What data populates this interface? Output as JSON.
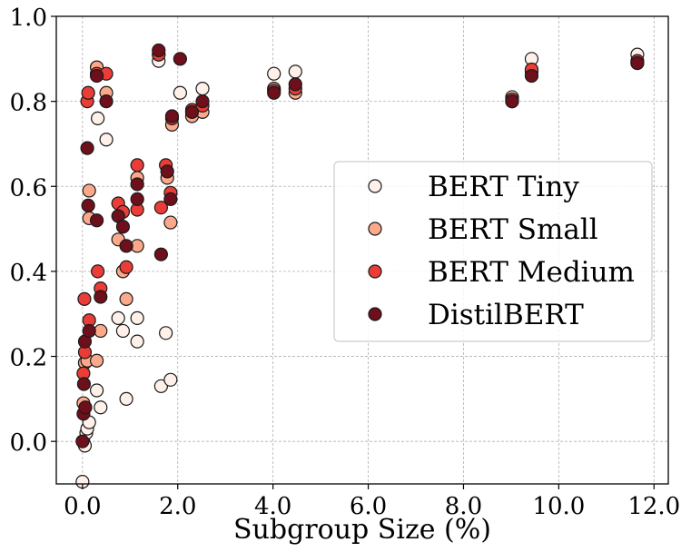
{
  "chart_data": {
    "type": "scatter",
    "title": "",
    "xlabel": "Subgroup Size (%)",
    "ylabel": "",
    "xlim": [
      -0.55,
      12.3
    ],
    "ylim": [
      -0.1,
      1.0
    ],
    "xticks": [
      0.0,
      2.0,
      4.0,
      6.0,
      8.0,
      10.0,
      12.0
    ],
    "xtick_labels": [
      "0.0",
      "2.0",
      "4.0",
      "6.0",
      "8.0",
      "10.0",
      "12.0"
    ],
    "yticks": [
      0.0,
      0.2,
      0.4,
      0.6,
      0.8,
      1.0
    ],
    "ytick_labels": [
      "0.0",
      "0.2",
      "0.4",
      "0.6",
      "0.8",
      "1.0"
    ],
    "grid": true,
    "legend_position": "center-right",
    "series": [
      {
        "name": "BERT Tiny",
        "color": "#fff0e9",
        "points": [
          [
            0.0,
            -0.095
          ],
          [
            0.02,
            0.0
          ],
          [
            0.05,
            -0.01
          ],
          [
            0.08,
            0.02
          ],
          [
            0.1,
            0.03
          ],
          [
            0.14,
            0.045
          ],
          [
            0.05,
            0.185
          ],
          [
            0.3,
            0.88
          ],
          [
            0.32,
            0.76
          ],
          [
            0.3,
            0.12
          ],
          [
            0.38,
            0.08
          ],
          [
            0.5,
            0.71
          ],
          [
            0.75,
            0.29
          ],
          [
            0.85,
            0.26
          ],
          [
            0.92,
            0.1
          ],
          [
            1.15,
            0.29
          ],
          [
            1.15,
            0.235
          ],
          [
            1.6,
            0.895
          ],
          [
            1.65,
            0.13
          ],
          [
            1.75,
            0.255
          ],
          [
            1.85,
            0.145
          ],
          [
            2.05,
            0.82
          ],
          [
            2.3,
            0.775
          ],
          [
            2.52,
            0.83
          ],
          [
            4.02,
            0.865
          ],
          [
            4.47,
            0.87
          ],
          [
            9.02,
            0.81
          ],
          [
            9.43,
            0.9
          ],
          [
            11.65,
            0.91
          ]
        ]
      },
      {
        "name": "BERT Small",
        "color": "#fca98b",
        "points": [
          [
            0.02,
            0.09
          ],
          [
            0.05,
            0.185
          ],
          [
            0.1,
            0.19
          ],
          [
            0.14,
            0.59
          ],
          [
            0.14,
            0.525
          ],
          [
            0.3,
            0.19
          ],
          [
            0.3,
            0.88
          ],
          [
            0.38,
            0.26
          ],
          [
            0.5,
            0.82
          ],
          [
            0.75,
            0.475
          ],
          [
            0.85,
            0.4
          ],
          [
            0.92,
            0.335
          ],
          [
            1.15,
            0.46
          ],
          [
            1.15,
            0.62
          ],
          [
            1.6,
            0.91
          ],
          [
            1.78,
            0.62
          ],
          [
            1.85,
            0.515
          ],
          [
            1.88,
            0.745
          ],
          [
            2.3,
            0.765
          ],
          [
            2.52,
            0.775
          ],
          [
            4.02,
            0.83
          ],
          [
            4.47,
            0.82
          ],
          [
            9.02,
            0.8
          ],
          [
            9.43,
            0.87
          ],
          [
            11.65,
            0.89
          ]
        ]
      },
      {
        "name": "BERT Medium",
        "color": "#ea3d37",
        "points": [
          [
            0.02,
            0.16
          ],
          [
            0.04,
            0.335
          ],
          [
            0.05,
            0.21
          ],
          [
            0.1,
            0.8
          ],
          [
            0.12,
            0.82
          ],
          [
            0.14,
            0.285
          ],
          [
            0.3,
            0.865
          ],
          [
            0.32,
            0.4
          ],
          [
            0.38,
            0.36
          ],
          [
            0.5,
            0.865
          ],
          [
            0.75,
            0.56
          ],
          [
            0.85,
            0.54
          ],
          [
            0.92,
            0.41
          ],
          [
            1.15,
            0.65
          ],
          [
            1.15,
            0.545
          ],
          [
            1.6,
            0.91
          ],
          [
            1.65,
            0.55
          ],
          [
            1.75,
            0.65
          ],
          [
            1.85,
            0.585
          ],
          [
            1.88,
            0.76
          ],
          [
            2.3,
            0.78
          ],
          [
            2.52,
            0.79
          ],
          [
            4.02,
            0.825
          ],
          [
            4.47,
            0.83
          ],
          [
            9.02,
            0.805
          ],
          [
            9.43,
            0.875
          ],
          [
            11.65,
            0.895
          ]
        ]
      },
      {
        "name": "DistilBERT",
        "color": "#6e0f1c",
        "points": [
          [
            0.0,
            0.0
          ],
          [
            0.02,
            0.065
          ],
          [
            0.03,
            0.135
          ],
          [
            0.05,
            0.235
          ],
          [
            0.06,
            0.08
          ],
          [
            0.1,
            0.69
          ],
          [
            0.12,
            0.555
          ],
          [
            0.14,
            0.26
          ],
          [
            0.3,
            0.52
          ],
          [
            0.3,
            0.86
          ],
          [
            0.38,
            0.34
          ],
          [
            0.5,
            0.8
          ],
          [
            0.75,
            0.53
          ],
          [
            0.85,
            0.505
          ],
          [
            0.92,
            0.46
          ],
          [
            1.15,
            0.57
          ],
          [
            1.15,
            0.605
          ],
          [
            1.6,
            0.92
          ],
          [
            1.65,
            0.44
          ],
          [
            1.78,
            0.635
          ],
          [
            1.85,
            0.57
          ],
          [
            1.88,
            0.765
          ],
          [
            2.05,
            0.9
          ],
          [
            2.3,
            0.775
          ],
          [
            2.52,
            0.8
          ],
          [
            4.02,
            0.82
          ],
          [
            4.47,
            0.84
          ],
          [
            9.02,
            0.8
          ],
          [
            9.43,
            0.86
          ],
          [
            11.65,
            0.89
          ]
        ]
      }
    ]
  }
}
